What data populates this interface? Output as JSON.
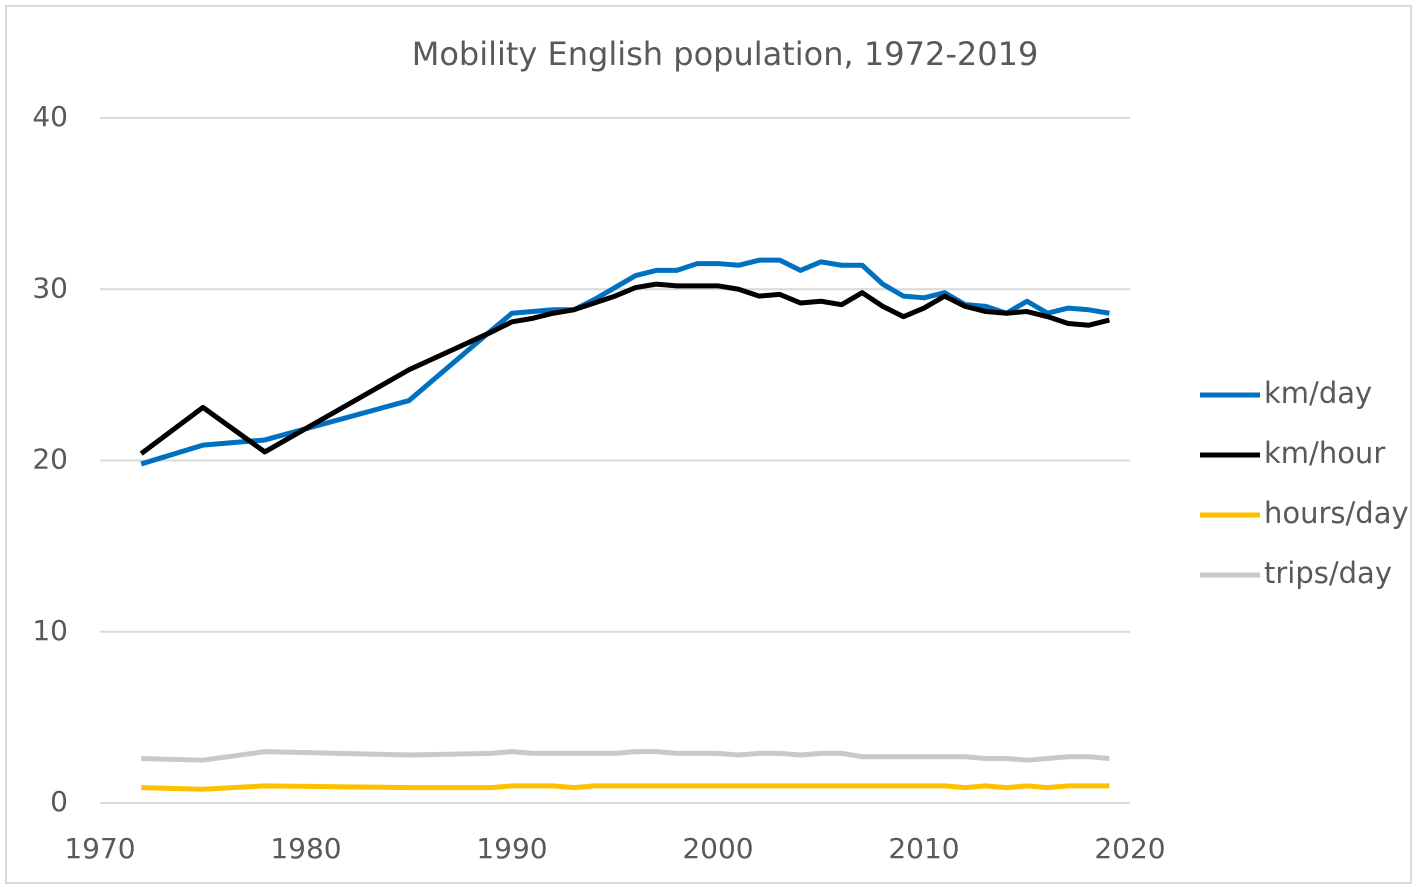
{
  "chart_data": {
    "type": "line",
    "title": "Mobility English population, 1972-2019",
    "x": [
      1972,
      1975,
      1978,
      1985,
      1989,
      1990,
      1991,
      1992,
      1993,
      1994,
      1995,
      1996,
      1997,
      1998,
      1999,
      2000,
      2001,
      2002,
      2003,
      2004,
      2005,
      2006,
      2007,
      2008,
      2009,
      2010,
      2011,
      2012,
      2013,
      2014,
      2015,
      2016,
      2017,
      2018,
      2019
    ],
    "series": [
      {
        "name": "km/day",
        "color": "#0070c0",
        "values": [
          19.8,
          20.9,
          21.2,
          23.5,
          27.6,
          28.6,
          28.7,
          28.8,
          28.8,
          29.4,
          30.1,
          30.8,
          31.1,
          31.1,
          31.5,
          31.5,
          31.4,
          31.7,
          31.7,
          31.1,
          31.6,
          31.4,
          31.4,
          30.3,
          29.6,
          29.5,
          29.8,
          29.1,
          29.0,
          28.6,
          29.3,
          28.6,
          28.9,
          28.8,
          28.6
        ]
      },
      {
        "name": "km/hour",
        "color": "#000000",
        "values": [
          20.4,
          23.1,
          20.5,
          25.3,
          27.5,
          28.1,
          28.3,
          28.6,
          28.8,
          29.2,
          29.6,
          30.1,
          30.3,
          30.2,
          30.2,
          30.2,
          30.0,
          29.6,
          29.7,
          29.2,
          29.3,
          29.1,
          29.8,
          29.0,
          28.4,
          28.9,
          29.6,
          29.0,
          28.7,
          28.6,
          28.7,
          28.4,
          28.0,
          27.9,
          28.2
        ]
      },
      {
        "name": "hours/day",
        "color": "#ffc000",
        "values": [
          0.9,
          0.8,
          1.0,
          0.9,
          0.9,
          1.0,
          1.0,
          1.0,
          0.9,
          1.0,
          1.0,
          1.0,
          1.0,
          1.0,
          1.0,
          1.0,
          1.0,
          1.0,
          1.0,
          1.0,
          1.0,
          1.0,
          1.0,
          1.0,
          1.0,
          1.0,
          1.0,
          0.9,
          1.0,
          0.9,
          1.0,
          0.9,
          1.0,
          1.0,
          1.0
        ]
      },
      {
        "name": "trips/day",
        "color": "#c9c9c9",
        "values": [
          2.6,
          2.5,
          3.0,
          2.8,
          2.9,
          3.0,
          2.9,
          2.9,
          2.9,
          2.9,
          2.9,
          3.0,
          3.0,
          2.9,
          2.9,
          2.9,
          2.8,
          2.9,
          2.9,
          2.8,
          2.9,
          2.9,
          2.7,
          2.7,
          2.7,
          2.7,
          2.7,
          2.7,
          2.6,
          2.6,
          2.5,
          2.6,
          2.7,
          2.7,
          2.6
        ]
      }
    ],
    "xlim": [
      1970,
      2020
    ],
    "xticks": [
      1970,
      1980,
      1990,
      2000,
      2010,
      2020
    ],
    "ylim": [
      0,
      40
    ],
    "yticks": [
      0,
      10,
      20,
      30,
      40
    ],
    "grid": true,
    "legend": "right"
  }
}
